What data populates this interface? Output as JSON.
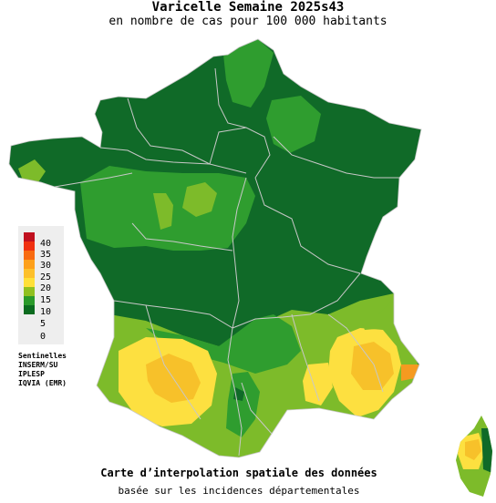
{
  "title": "Varicelle Semaine 2025s43",
  "subtitle": "en nombre de cas pour 100 000 habitants",
  "footer_title": "Carte d’interpolation spatiale des données",
  "footer_subtitle": "basée sur les incidences départementales",
  "legend": {
    "ticks": [
      "40",
      "35",
      "30",
      "25",
      "20",
      "15",
      "10",
      "5",
      "0"
    ],
    "colors": [
      "#c0101e",
      "#f03010",
      "#f86a10",
      "#fda01a",
      "#fdc02a",
      "#ffe038",
      "#90c020",
      "#2a9a2a",
      "#0b6b1f"
    ]
  },
  "sources": [
    "Sentinelles",
    "INSERM/SU",
    "IPLESP",
    "IQVIA (EMR)"
  ],
  "colors": {
    "dark_green": "#106a28",
    "mid_green": "#2f9d2f",
    "light_green": "#7dbb2a",
    "yellow": "#fde040",
    "gold": "#f7c12a",
    "orange": "#f59a20",
    "border": "#c8c8c8"
  }
}
